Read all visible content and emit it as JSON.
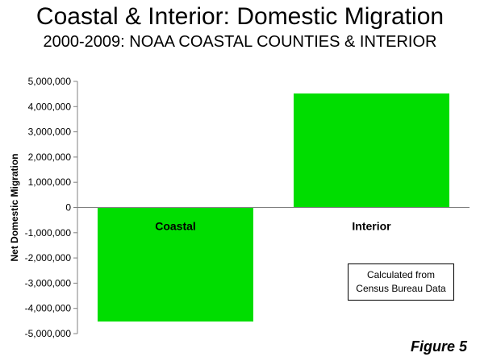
{
  "header": {
    "title": "Coastal & Interior: Domestic Migration",
    "subtitle": "2000-2009: NOAA COASTAL COUNTIES & INTERIOR"
  },
  "chart_data": {
    "type": "bar",
    "categories": [
      "Coastal",
      "Interior"
    ],
    "values": [
      -4520000,
      4520000
    ],
    "ylabel": "Net Domestic Migration",
    "ylim": [
      -5000000,
      5000000
    ],
    "yticks": [
      5000000,
      4000000,
      3000000,
      2000000,
      1000000,
      0,
      -1000000,
      -2000000,
      -3000000,
      -4000000,
      -5000000
    ],
    "ytick_labels": [
      "5,000,000",
      "4,000,000",
      "3,000,000",
      "2,000,000",
      "1,000,000",
      "0",
      "-1,000,000",
      "-2,000,000",
      "-3,000,000",
      "-4,000,000",
      "-5,000,000"
    ],
    "bar_color": "#00dd00",
    "grid": false,
    "legend": "none"
  },
  "note": {
    "line1": "Calculated from",
    "line2": "Census Bureau Data"
  },
  "figure_label": "Figure 5"
}
